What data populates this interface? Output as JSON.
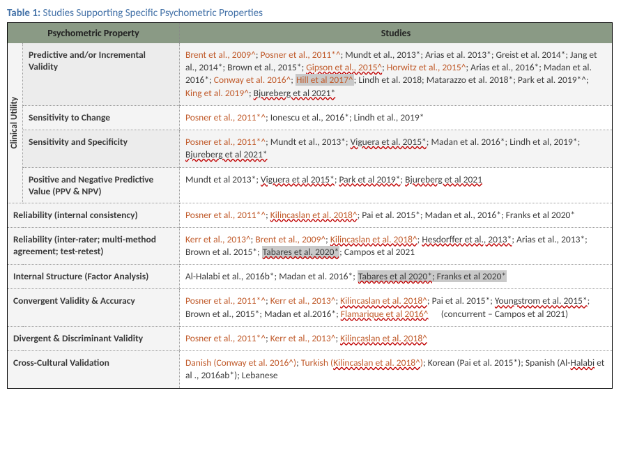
{
  "title": {
    "label": "Table 1:",
    "text": "Studies Supporting Specific Psychometric Properties"
  },
  "headers": {
    "prop": "Psychometric Property",
    "studies": "Studies"
  },
  "group_label": "Clinical Utility",
  "rows": {
    "predictive": {
      "prop": "Predictive and/or Incremental Validity"
    },
    "sensitivity_change": {
      "prop": "Sensitivity to Change"
    },
    "sens_spec": {
      "prop": "Sensitivity and Specificity"
    },
    "ppv_npv": {
      "prop": "Positive and Negative Predictive Value (PPV & NPV)"
    },
    "rel_internal": {
      "prop": "Reliability (internal consistency)"
    },
    "rel_inter": {
      "prop": "Reliability (inter-rater; multi-method agreement; test-retest)"
    },
    "factor": {
      "prop": "Internal Structure (Factor Analysis)"
    },
    "convergent": {
      "prop": "Convergent Validity & Accuracy",
      "note": "(concurrent – Campos et al 2021)"
    },
    "divergent": {
      "prop": "Divergent & Discriminant Validity"
    },
    "crosscultural": {
      "prop": "Cross-Cultural Validation"
    }
  },
  "s": {
    "brent2009": "Brent et al., 2009^",
    "posner2011": "Posner et al., 2011*^",
    "mundt2013": "Mundt et al., 2013*",
    "arias2013": "Arias et al. 2013*",
    "arias2013b": "Arias et al., 2013*",
    "greist2014": "Greist et al. 2014*",
    "jang2014": "Jang et al., 2014*",
    "brown2015": "Brown et al., 2015*",
    "gipson2015": "Gipson et al., 2015^",
    "horwitz2015": "Horwitz et al., 2015^",
    "arias2016": "Arias et al., 2016*",
    "madan2016": "Madan et al. 2016*",
    "madan2016b": "Madan et al., 2016*",
    "madan2016c": "Madan et al.2016*",
    "conway2016": "Conway et al. 2016^",
    "hill2017": "Hill et al 2017^",
    "lindh2018": "Lindh et al. 2018",
    "matarazzo2018": "Matarazzo et al. 2018*",
    "park2019a": "Park et al. 2019*^",
    "king2019": "King et al. 2019^",
    "bjureberg2021": "Bjureberg et al 2021*",
    "bjureberg2021b": "Bjureberg et al 2021",
    "ionescu2016": "Ionescu et al., 2016*",
    "lindh2019": "Lindh et al., 2019*",
    "lindh2019b": "Lindh et al, 2019*",
    "viguera2015": "Viguera et al. 2015*",
    "viguera2015b": "Viguera et al 2015*",
    "mundt2013b": "Mundt et al 2013*",
    "park2019b": "Park et al 2019*",
    "kilincaslan2018": "Kilincaslan et al. 2018^",
    "pai2015": "Pai et al. 2015*",
    "franks2020": "Franks et al 2020*",
    "kerr2013": "Kerr et al., 2013^",
    "hesdorffer2013": "Hesdorffer et al., 2013*",
    "brown2015b": "Brown et al. 2015*",
    "tabares2020": "Tabares et al. 2020*",
    "tabares2020b": "Tabares et al 2020*",
    "campos2021": "Campos et al 2021",
    "alhalabi2016b": "Al-Halabi et al., 2016b*",
    "youngstrom2015": "Youngstrom et al. 2015*",
    "flamarique2016": "Flamarique et al 2016^",
    "danish_pre": "Danish (",
    "danish_post": ")",
    "turkish_pre": "Turkish (",
    "turkish_post": ")",
    "korean": "Korean (Pai et al. 2015*)",
    "spanish_pre": "Spanish (Al-",
    "spanish_mid": "Halabi",
    "spanish_post": " et al ., 2016ab*)",
    "lebanese": "Lebanese"
  },
  "sep": ";  ",
  "sep_tight": "; "
}
